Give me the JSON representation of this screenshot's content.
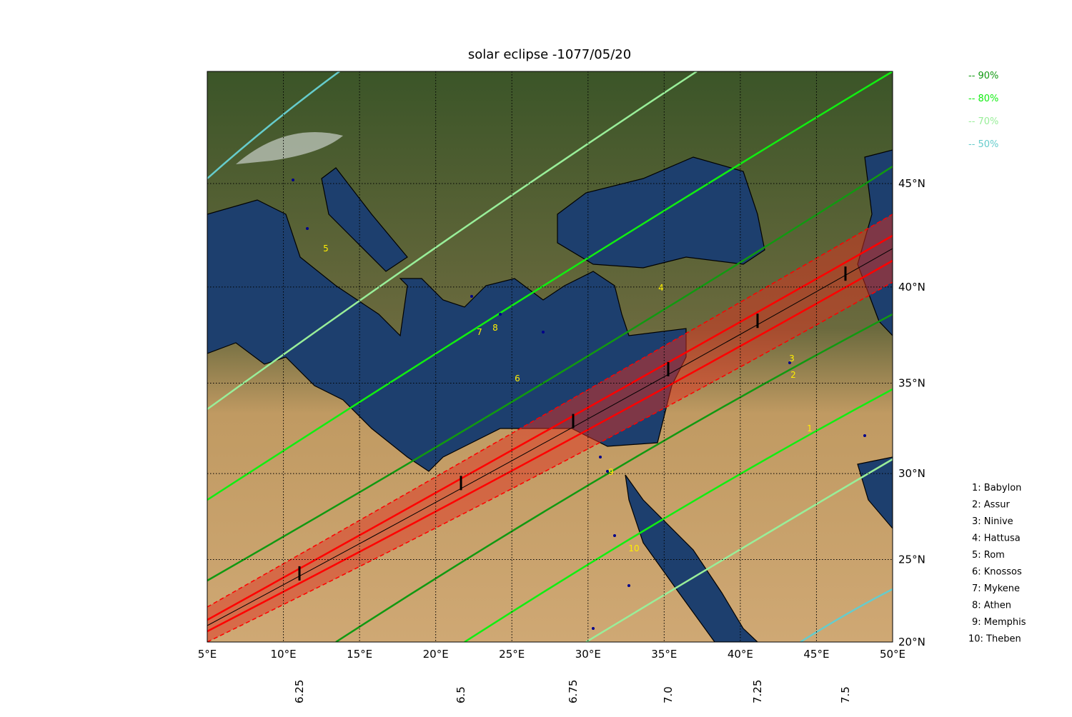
{
  "title": "solar eclipse -1077/05/20",
  "lon_ticks": [
    {
      "value": 5,
      "label": "5°E"
    },
    {
      "value": 10,
      "label": "10°E"
    },
    {
      "value": 15,
      "label": "15°E"
    },
    {
      "value": 20,
      "label": "20°E"
    },
    {
      "value": 25,
      "label": "25°E"
    },
    {
      "value": 30,
      "label": "30°E"
    },
    {
      "value": 35,
      "label": "35°E"
    },
    {
      "value": 40,
      "label": "40°E"
    },
    {
      "value": 45,
      "label": "45°E"
    },
    {
      "value": 50,
      "label": "50°E"
    }
  ],
  "lat_ticks": [
    {
      "value": 20,
      "label": "20°N"
    },
    {
      "value": 25,
      "label": "25°N"
    },
    {
      "value": 30,
      "label": "30°N"
    },
    {
      "value": 35,
      "label": "35°N"
    },
    {
      "value": 40,
      "label": "40°N"
    },
    {
      "value": 45,
      "label": "45°N"
    }
  ],
  "legend": [
    {
      "label": "-- 90%",
      "color": "#119911"
    },
    {
      "label": "-- 80%",
      "color": "#11ee11"
    },
    {
      "label": "-- 70%",
      "color": "#99ee99"
    },
    {
      "label": "-- 50%",
      "color": "#66cccc"
    }
  ],
  "cities": [
    {
      "number": "1",
      "label": "1: Babylon"
    },
    {
      "number": "2",
      "label": "2: Assur"
    },
    {
      "number": "3",
      "label": "3: Ninive"
    },
    {
      "number": "4",
      "label": "4: Hattusa"
    },
    {
      "number": "5",
      "label": "5: Rom"
    },
    {
      "number": "6",
      "label": "6: Knossos"
    },
    {
      "number": "7",
      "label": "7: Mykene"
    },
    {
      "number": "8",
      "label": "8: Athen"
    },
    {
      "number": "9",
      "label": "9: Memphis"
    },
    {
      "number": "10",
      "label": "10: Theben"
    }
  ],
  "time_ticks": [
    "6.25",
    "6.5",
    "6.75",
    "7.0",
    "7.25",
    "7.5"
  ]
}
